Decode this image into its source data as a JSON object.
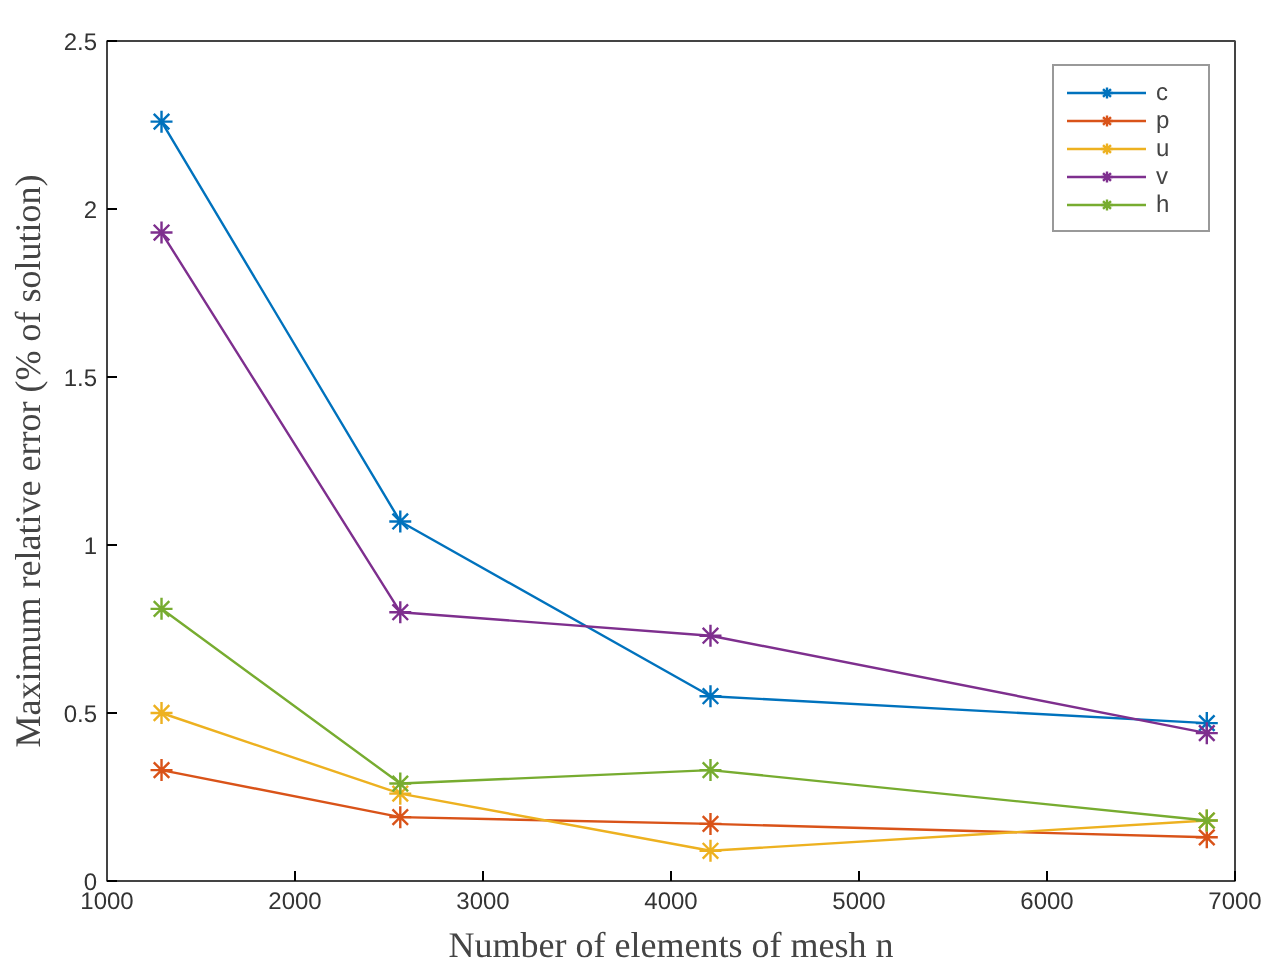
{
  "chart_data": {
    "type": "line",
    "xlabel": "Number of elements of mesh n",
    "ylabel": "Maximum relative error (% of solution)",
    "x": [
      1290,
      2560,
      4210,
      6850
    ],
    "series": [
      {
        "name": "c",
        "color": "#0072bd",
        "values": [
          2.26,
          1.07,
          0.55,
          0.47
        ]
      },
      {
        "name": "p",
        "color": "#d95319",
        "values": [
          0.33,
          0.19,
          0.17,
          0.13
        ]
      },
      {
        "name": "u",
        "color": "#edb120",
        "values": [
          0.5,
          0.26,
          0.09,
          0.18
        ]
      },
      {
        "name": "v",
        "color": "#7e2f8e",
        "values": [
          1.93,
          0.8,
          0.73,
          0.44
        ]
      },
      {
        "name": "h",
        "color": "#77ac30",
        "values": [
          0.81,
          0.29,
          0.33,
          0.18
        ]
      }
    ],
    "xlim": [
      1000,
      7000
    ],
    "xticks": [
      1000,
      2000,
      3000,
      4000,
      5000,
      6000,
      7000
    ],
    "ylim": [
      0,
      2.5
    ],
    "yticks": [
      0,
      0.5,
      1,
      1.5,
      2,
      2.5
    ],
    "grid": false,
    "legend": "top right",
    "marker": "cross",
    "line_style": "solid"
  }
}
